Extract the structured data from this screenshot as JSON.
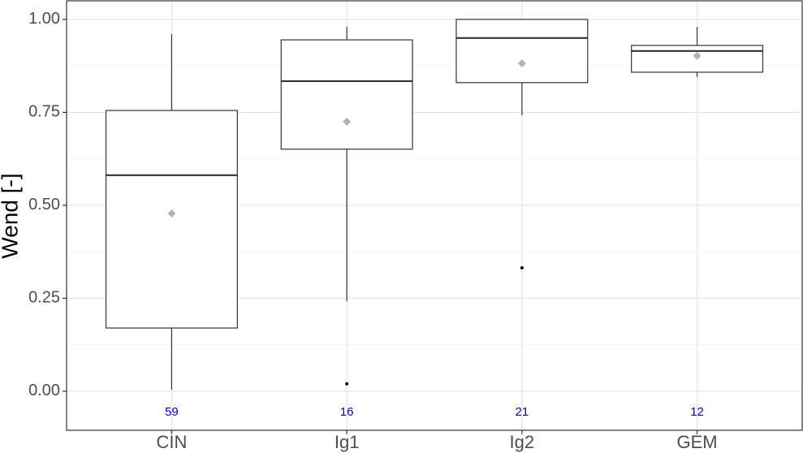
{
  "chart_data": {
    "type": "box",
    "ylabel": "Wend [-]",
    "categories": [
      "CIN",
      "Ig1",
      "Ig2",
      "GEM"
    ],
    "boxes": [
      {
        "whisker_low": 0.004,
        "q1": 0.17,
        "median": 0.581,
        "q3": 0.755,
        "whisker_high": 0.961,
        "mean": 0.478,
        "outliers": []
      },
      {
        "whisker_low": 0.242,
        "q1": 0.651,
        "median": 0.834,
        "q3": 0.945,
        "whisker_high": 0.98,
        "mean": 0.725,
        "outliers": [
          0.02
        ]
      },
      {
        "whisker_low": 0.742,
        "q1": 0.83,
        "median": 0.95,
        "q3": 1.0,
        "whisker_high": 1.0,
        "mean": 0.882,
        "outliers": [
          0.332
        ]
      },
      {
        "whisker_low": 0.845,
        "q1": 0.858,
        "median": 0.915,
        "q3": 0.93,
        "whisker_high": 0.98,
        "mean": 0.902,
        "outliers": []
      }
    ],
    "counts": [
      59,
      16,
      21,
      12
    ],
    "count_color": "#0000cc",
    "mean_color": "#b3b3b3",
    "ylim": [
      -0.105,
      1.05
    ],
    "yticks": [
      {
        "value": 0,
        "label": "0.00"
      },
      {
        "value": 0.25,
        "label": "0.25"
      },
      {
        "value": 0.5,
        "label": "0.50"
      },
      {
        "value": 0.75,
        "label": "0.75"
      },
      {
        "value": 1,
        "label": "1.00"
      }
    ],
    "yminor": [
      0.125,
      0.375,
      0.625,
      0.875
    ],
    "grid": true
  }
}
